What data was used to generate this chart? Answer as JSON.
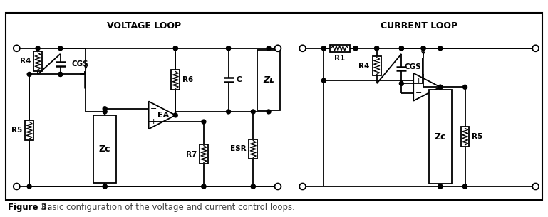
{
  "title": "Figure 3.",
  "caption": "  Basic configuration of the voltage and current control loops.",
  "voltage_loop_label": "VOLTAGE LOOP",
  "current_loop_label": "CURRENT LOOP",
  "fig_width": 7.69,
  "fig_height": 3.05,
  "dpi": 100,
  "lc": "#000000",
  "lw": 1.3,
  "dot_r": 3.0,
  "open_r": 4.5
}
